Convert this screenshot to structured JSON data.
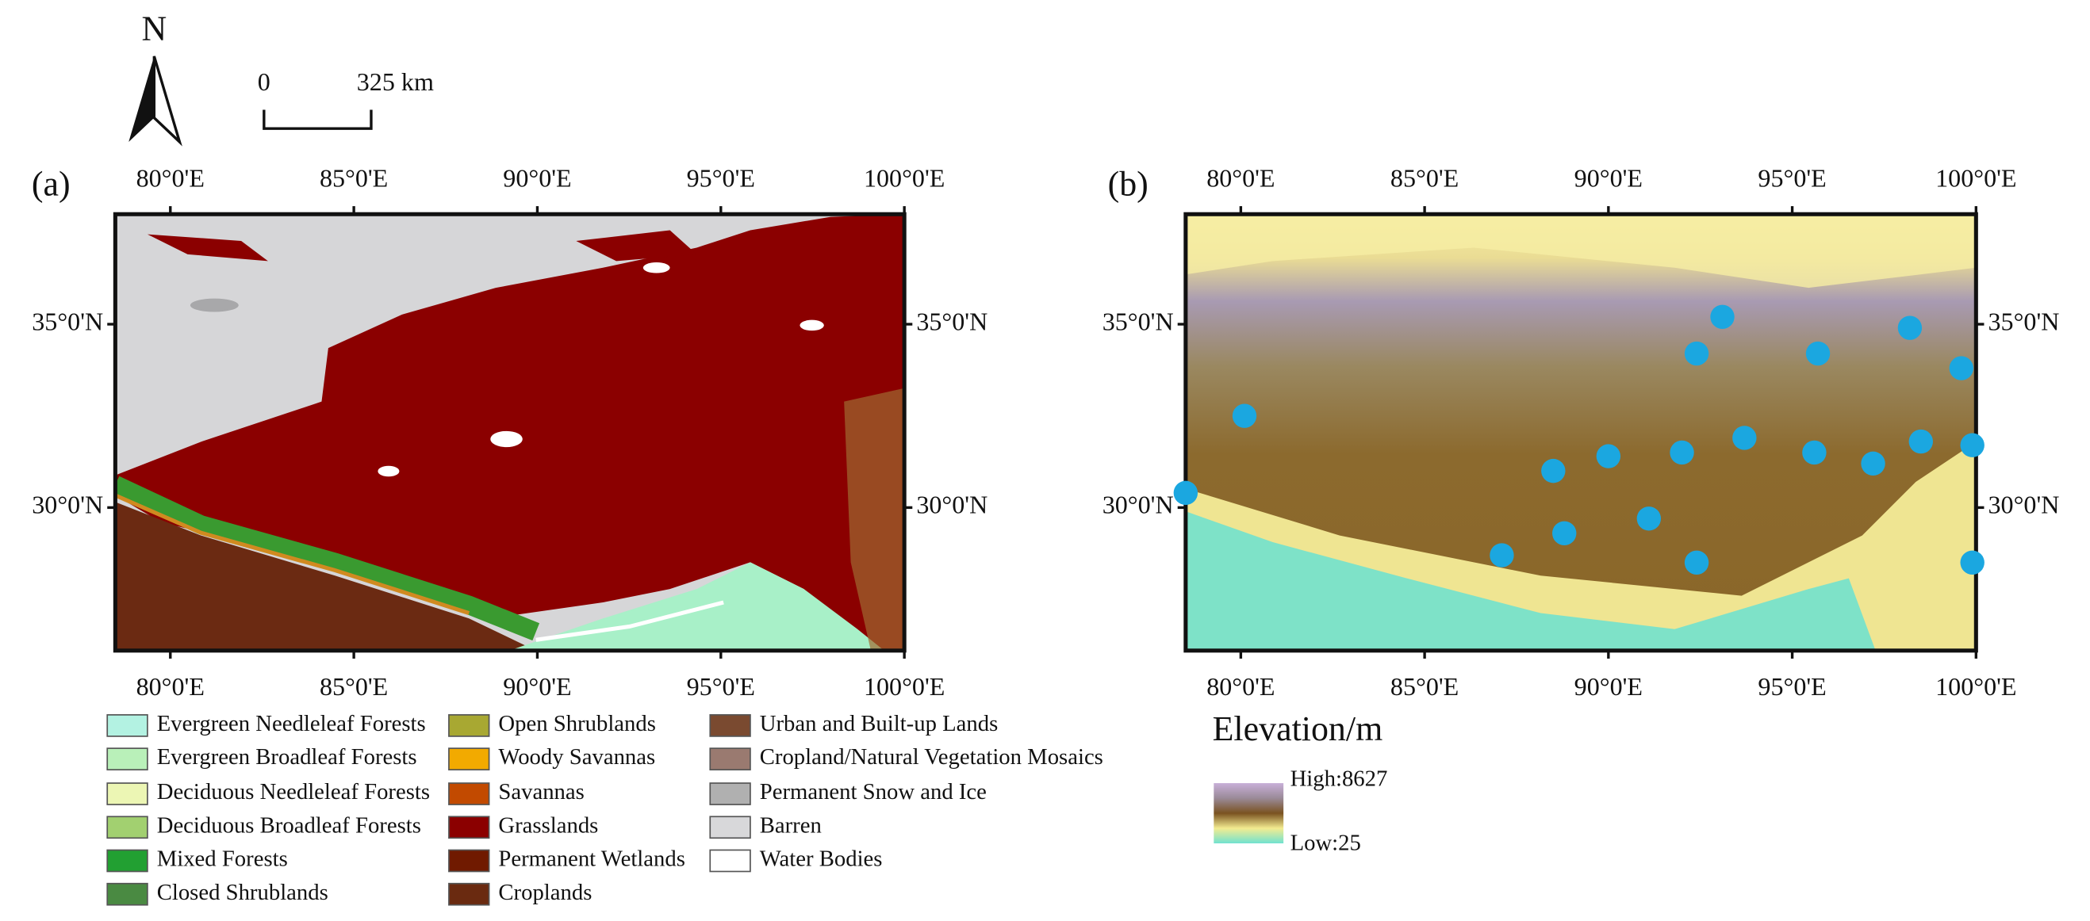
{
  "north_label": "N",
  "scale_bar": {
    "labels": [
      "0",
      "325 km"
    ]
  },
  "panels": [
    {
      "label": "(a)"
    },
    {
      "label": "(b)"
    }
  ],
  "lonlim": [
    78.5,
    100
  ],
  "latlim": [
    26.1,
    38
  ],
  "lon_ticks": [
    {
      "value": 80,
      "label": "80°0'E"
    },
    {
      "value": 85,
      "label": "85°0'E"
    },
    {
      "value": 90,
      "label": "90°0'E"
    },
    {
      "value": 95,
      "label": "95°0'E"
    },
    {
      "value": 100,
      "label": "100°0'E"
    }
  ],
  "lat_ticks": [
    {
      "value": 35,
      "label": "35°0'N"
    },
    {
      "value": 30,
      "label": "30°0'N"
    }
  ],
  "legend": {
    "items": [
      {
        "label": "Evergreen Needleleaf Forests",
        "color": "#b3f2e2"
      },
      {
        "label": "Evergreen Broadleaf Forests",
        "color": "#b9f0b9"
      },
      {
        "label": "Deciduous Needleleaf Forests",
        "color": "#ecf6b4"
      },
      {
        "label": "Deciduous Broadleaf Forests",
        "color": "#a2d070"
      },
      {
        "label": "Mixed Forests",
        "color": "#22a032"
      },
      {
        "label": "Closed Shrublands",
        "color": "#4a8a42"
      },
      {
        "label": "Open Shrublands",
        "color": "#a8a832"
      },
      {
        "label": "Woody Savannas",
        "color": "#f2aa00"
      },
      {
        "label": "Savannas",
        "color": "#c24a00"
      },
      {
        "label": "Grasslands",
        "color": "#8b0000"
      },
      {
        "label": "Permanent Wetlands",
        "color": "#701a00"
      },
      {
        "label": "Croplands",
        "color": "#6a2a10"
      },
      {
        "label": "Urban and Built-up Lands",
        "color": "#7a4a30"
      },
      {
        "label": "Cropland/Natural Vegetation Mosaics",
        "color": "#9a7a70"
      },
      {
        "label": "Permanent Snow and Ice",
        "color": "#b0b0b0"
      },
      {
        "label": "Barren",
        "color": "#d8d8da"
      },
      {
        "label": "Water Bodies",
        "color": "#ffffff"
      }
    ]
  },
  "elevation": {
    "title": "Elevation/m",
    "high": "High:8627",
    "low": "Low:25"
  },
  "station_color": "#1ba7e0",
  "stations": [
    [
      78.5,
      30.4
    ],
    [
      80.1,
      32.5
    ],
    [
      93.1,
      35.2
    ],
    [
      92.4,
      34.2
    ],
    [
      98.2,
      34.9
    ],
    [
      95.7,
      34.2
    ],
    [
      99.6,
      33.8
    ],
    [
      88.5,
      31.0
    ],
    [
      90.0,
      31.4
    ],
    [
      92.0,
      31.5
    ],
    [
      93.7,
      31.9
    ],
    [
      95.6,
      31.5
    ],
    [
      97.2,
      31.2
    ],
    [
      98.5,
      31.8
    ],
    [
      99.9,
      31.7
    ],
    [
      91.1,
      29.7
    ],
    [
      88.8,
      29.3
    ],
    [
      87.1,
      28.7
    ],
    [
      92.4,
      28.5
    ],
    [
      99.9,
      28.5
    ]
  ]
}
